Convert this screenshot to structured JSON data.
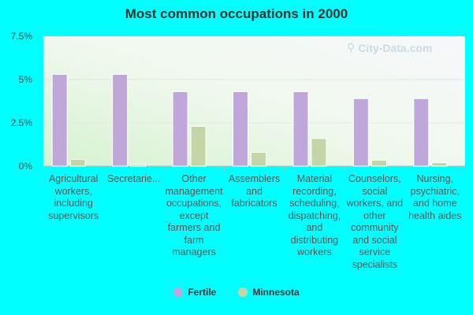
{
  "chart_data": {
    "type": "bar",
    "title": "Most common occupations in 2000",
    "y_ticks": [
      "7.5%",
      "5%",
      "2.5%",
      "0%"
    ],
    "ylim": [
      0,
      7.5
    ],
    "grid": true,
    "legend_position": "bottom",
    "categories": [
      "Agricultural workers, including supervisors",
      "Secretarie...",
      "Other management occupations, except farmers and farm managers",
      "Assemblers and fabricators",
      "Material recording, scheduling, dispatching, and distributing workers",
      "Counselors, social workers, and other community and social service specialists",
      "Nursing, psychiatric, and home health aides"
    ],
    "series": [
      {
        "name": "Fertile",
        "color": "#bfa8d9",
        "values": [
          5.3,
          5.3,
          4.3,
          4.3,
          4.3,
          3.9,
          3.9
        ]
      },
      {
        "name": "Minnesota",
        "color": "#c5d6a6",
        "values": [
          0.4,
          0.1,
          2.3,
          0.8,
          1.6,
          0.35,
          0.2
        ]
      }
    ]
  },
  "watermark": "City-Data.com"
}
